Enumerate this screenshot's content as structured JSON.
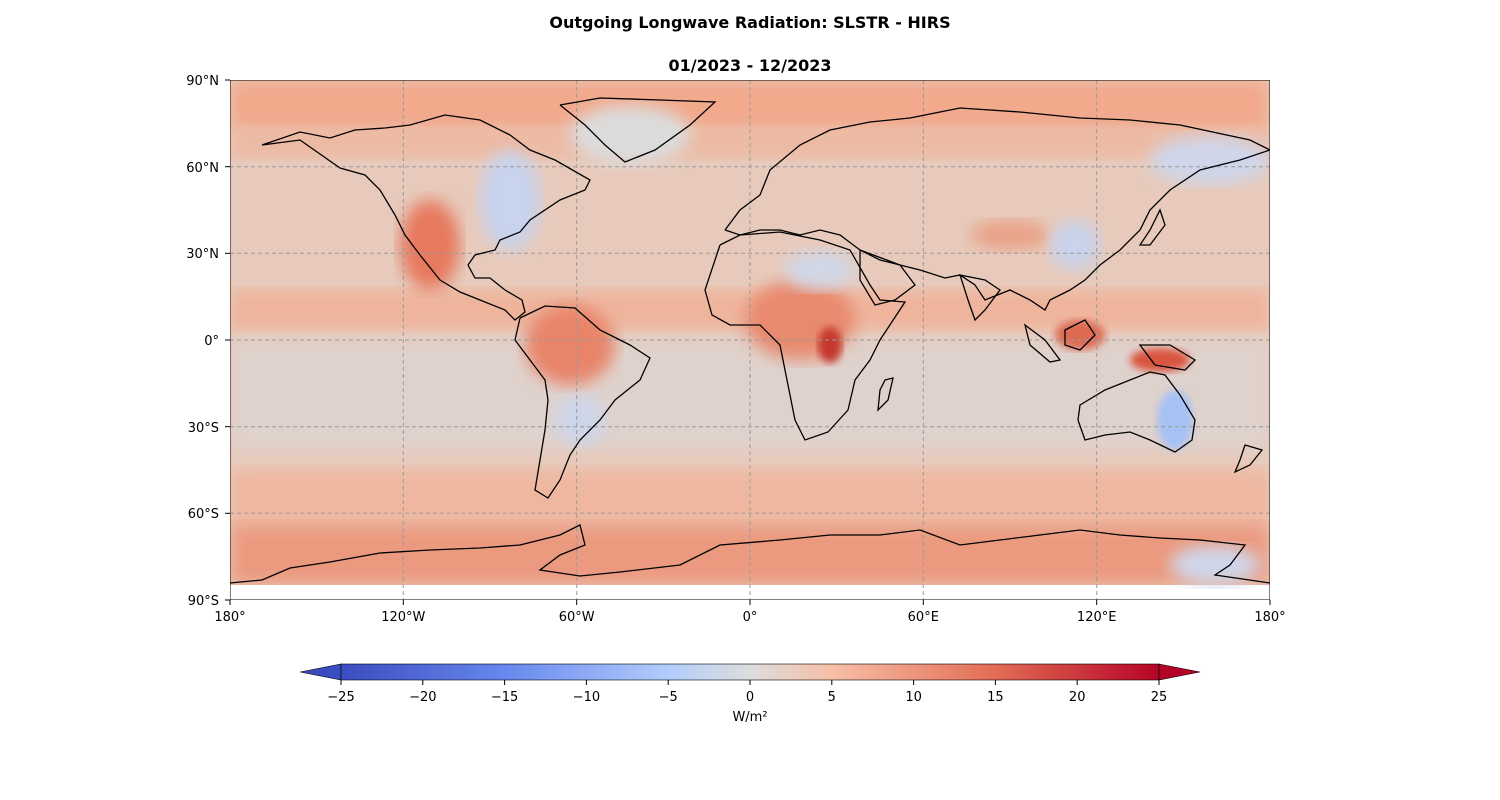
{
  "title": "Outgoing Longwave Radiation: SLSTR - HIRS",
  "subtitle": "01/2023 - 12/2023",
  "lat_ticks": [
    "90°N",
    "60°N",
    "30°N",
    "0°",
    "30°S",
    "60°S",
    "90°S"
  ],
  "lon_ticks": [
    "180°",
    "120°W",
    "60°W",
    "0°",
    "60°E",
    "120°E",
    "180°"
  ],
  "colorbar": {
    "label": "W/m²",
    "min": -25,
    "max": 25,
    "extend": "both",
    "ticks": [
      "−25",
      "−20",
      "−15",
      "−10",
      "−5",
      "0",
      "5",
      "10",
      "15",
      "20",
      "25"
    ],
    "colormap": "coolwarm",
    "low_color": "#3b4cc0",
    "mid_color": "#dddddd",
    "high_color": "#b40426"
  },
  "map": {
    "projection": "PlateCarree",
    "gridlines": true,
    "ocean_anomaly": "mostly +3 to +10 W/m²",
    "land_outline_color": "#000000"
  }
}
